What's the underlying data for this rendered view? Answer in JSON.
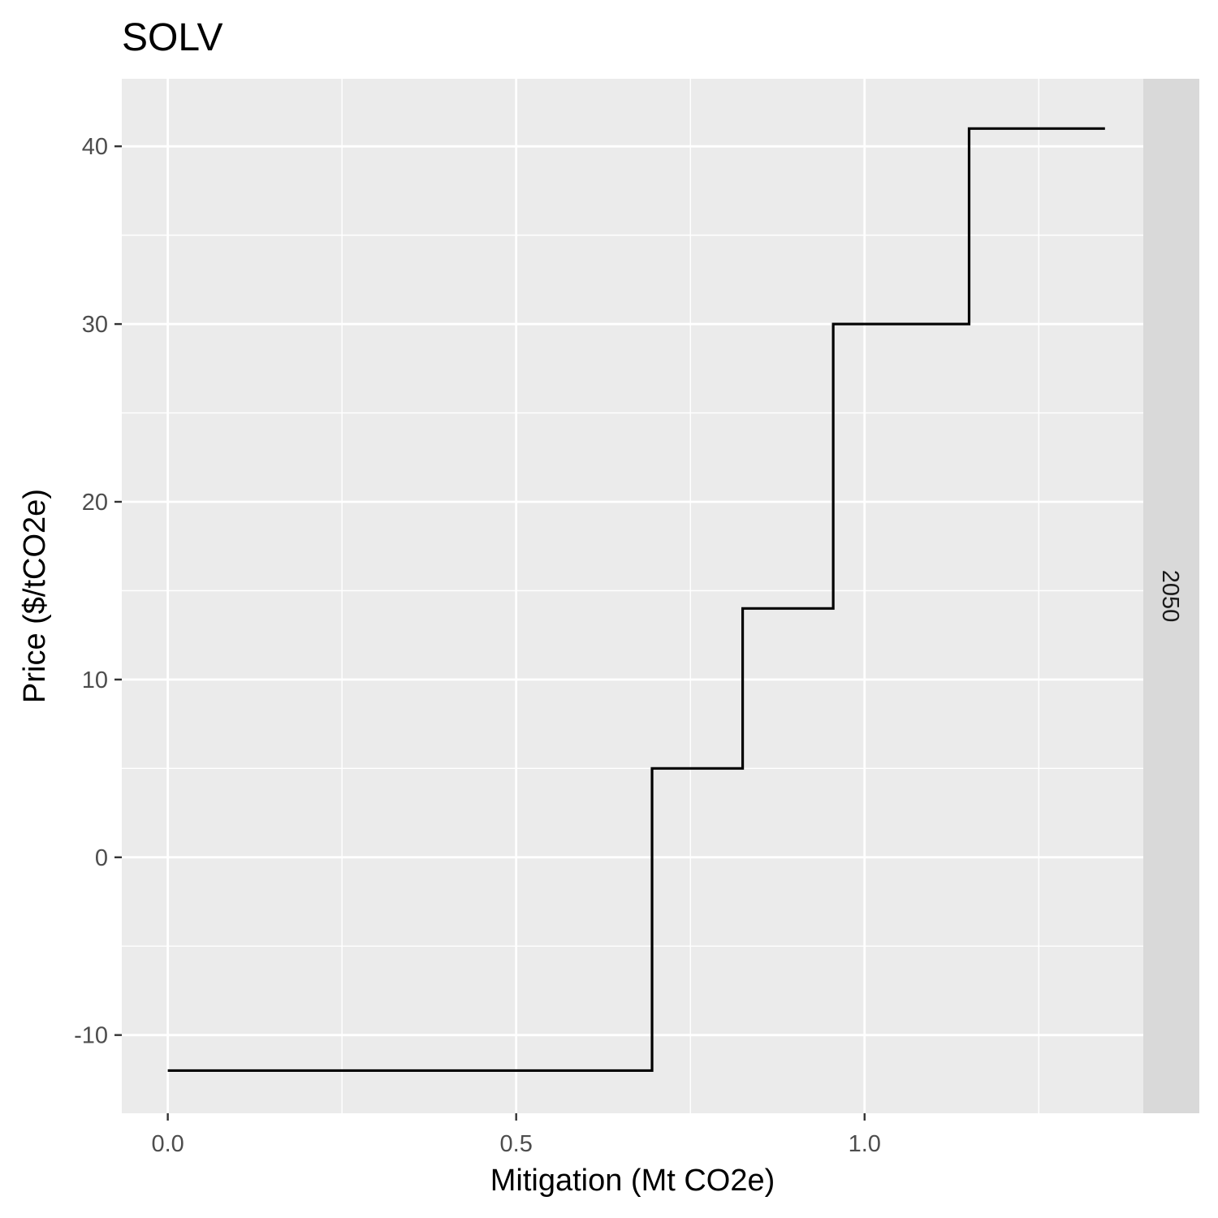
{
  "chart_data": {
    "type": "line",
    "step": true,
    "title": "SOLV",
    "xlabel": "Mitigation (Mt CO2e)",
    "ylabel": "Price ($/tCO2e)",
    "facet_label": "2050",
    "xlim": [
      -0.066,
      1.4
    ],
    "ylim": [
      -14.4,
      43.8
    ],
    "x_ticks": [
      0.0,
      0.5,
      1.0
    ],
    "x_tick_labels": [
      "0.0",
      "0.5",
      "1.0"
    ],
    "y_ticks": [
      -10,
      0,
      10,
      20,
      30,
      40
    ],
    "y_tick_labels": [
      "-10",
      "0",
      "10",
      "20",
      "30",
      "40"
    ],
    "grid": true,
    "legend": "none",
    "series": [
      {
        "x": [
          0.0,
          0.695,
          0.695,
          0.825,
          0.825,
          0.955,
          0.955,
          1.15,
          1.15,
          1.345
        ],
        "y": [
          -12,
          -12,
          5,
          5,
          14,
          14,
          30,
          30,
          41,
          41
        ]
      }
    ],
    "colors": {
      "panel_bg": "#ebebeb",
      "grid": "#ffffff",
      "strip_bg": "#d9d9d9",
      "line": "#000000",
      "tick": "#333333"
    }
  }
}
